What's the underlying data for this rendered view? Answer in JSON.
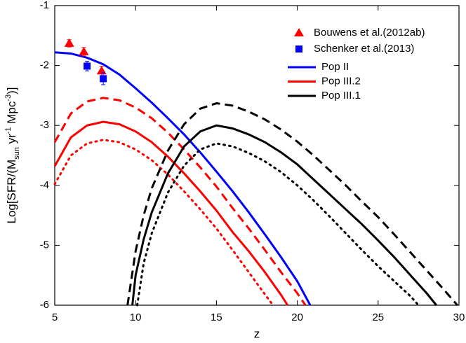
{
  "chart_data": {
    "type": "line",
    "xlabel": "z",
    "ylabel": [
      "Log[SFR/(M",
      "sun",
      " yr",
      "-1",
      " Mpc",
      "-3",
      ")]"
    ],
    "xlim": [
      5,
      30
    ],
    "xticks": [
      5,
      10,
      15,
      20,
      25,
      30
    ],
    "ylim": [
      -6,
      -1
    ],
    "yticks": [
      -6,
      -5,
      -4,
      -3,
      -2,
      -1
    ],
    "legend": "top-right",
    "points": [
      {
        "name": "Bouwens et al.(2012ab)",
        "color": "#ff0000",
        "marker": "triangle",
        "x": [
          5.9,
          6.8,
          7.9
        ],
        "values": [
          -1.63,
          -1.77,
          -2.09
        ],
        "errors": [
          0.06,
          0.07,
          0.08
        ]
      },
      {
        "name": "Schenker et al.(2013)",
        "color": "#0000ff",
        "marker": "square",
        "x": [
          7.0,
          8.0
        ],
        "values": [
          -2.01,
          -2.22
        ],
        "errors": [
          0.08,
          0.1
        ]
      }
    ],
    "series": [
      {
        "name": "Pop II",
        "color": "#0000ff",
        "dash": "solid",
        "x": [
          5,
          6,
          7,
          8,
          9,
          10,
          11,
          12,
          13,
          14,
          15,
          16,
          17,
          18,
          19,
          20,
          20.8
        ],
        "values": [
          -1.78,
          -1.8,
          -1.87,
          -1.98,
          -2.15,
          -2.38,
          -2.62,
          -2.88,
          -3.15,
          -3.45,
          -3.77,
          -4.1,
          -4.45,
          -4.82,
          -5.2,
          -5.6,
          -6
        ]
      },
      {
        "name": "Pop III.2",
        "color": "#ff0000",
        "dash": "solid",
        "x": [
          5,
          6,
          7,
          8,
          9,
          10,
          11,
          12,
          13,
          14,
          15,
          16,
          17,
          18,
          19,
          19.4
        ],
        "values": [
          -3.68,
          -3.2,
          -3.0,
          -2.94,
          -2.98,
          -3.1,
          -3.28,
          -3.52,
          -3.8,
          -4.1,
          -4.42,
          -4.78,
          -5.1,
          -5.45,
          -5.83,
          -6
        ]
      },
      {
        "color": "#ff0000",
        "dash": "dashed",
        "x": [
          5,
          6,
          7,
          8,
          9,
          10,
          11,
          12,
          13,
          14,
          15,
          16,
          17,
          18,
          19,
          20,
          20.5
        ],
        "values": [
          -3.28,
          -2.8,
          -2.6,
          -2.54,
          -2.58,
          -2.7,
          -2.88,
          -3.12,
          -3.4,
          -3.7,
          -4.02,
          -4.38,
          -4.72,
          -5.08,
          -5.45,
          -5.8,
          -6
        ]
      },
      {
        "color": "#ff0000",
        "dash": "dotted",
        "x": [
          5,
          6,
          7,
          8,
          9,
          10,
          11,
          12,
          13,
          14,
          15,
          16,
          17,
          18,
          18.5
        ],
        "values": [
          -3.98,
          -3.5,
          -3.3,
          -3.24,
          -3.28,
          -3.4,
          -3.58,
          -3.82,
          -4.1,
          -4.4,
          -4.72,
          -5.08,
          -5.45,
          -5.82,
          -6
        ]
      },
      {
        "name": "Pop III.1",
        "color": "#000000",
        "dash": "solid",
        "x": [
          9.8,
          10,
          10.5,
          11,
          12,
          13,
          14,
          15,
          16,
          17,
          18,
          19,
          20,
          21,
          22,
          23,
          24,
          25,
          26,
          27,
          28,
          28.6
        ],
        "values": [
          -6,
          -5.5,
          -4.9,
          -4.45,
          -3.8,
          -3.35,
          -3.1,
          -3.0,
          -3.05,
          -3.15,
          -3.28,
          -3.45,
          -3.65,
          -3.9,
          -4.15,
          -4.4,
          -4.65,
          -4.92,
          -5.2,
          -5.5,
          -5.8,
          -6
        ]
      },
      {
        "color": "#000000",
        "dash": "dashed",
        "x": [
          9.5,
          10,
          10.5,
          11,
          12,
          13,
          14,
          15,
          16,
          17,
          18,
          19,
          20,
          21,
          22,
          23,
          24,
          25,
          26,
          27,
          28,
          29,
          29.9
        ],
        "values": [
          -6,
          -5.1,
          -4.5,
          -4.05,
          -3.42,
          -2.98,
          -2.72,
          -2.63,
          -2.67,
          -2.77,
          -2.9,
          -3.07,
          -3.27,
          -3.5,
          -3.75,
          -4.0,
          -4.27,
          -4.53,
          -4.82,
          -5.12,
          -5.42,
          -5.72,
          -6
        ]
      },
      {
        "color": "#000000",
        "dash": "dotted",
        "x": [
          10.1,
          10.5,
          11,
          12,
          13,
          14,
          15,
          16,
          17,
          18,
          19,
          20,
          21,
          22,
          23,
          24,
          25,
          26,
          27,
          27.5
        ],
        "values": [
          -6,
          -5.3,
          -4.8,
          -4.12,
          -3.67,
          -3.4,
          -3.3,
          -3.35,
          -3.46,
          -3.6,
          -3.78,
          -4.0,
          -4.25,
          -4.52,
          -4.8,
          -5.08,
          -5.35,
          -5.6,
          -5.85,
          -6
        ]
      }
    ]
  }
}
